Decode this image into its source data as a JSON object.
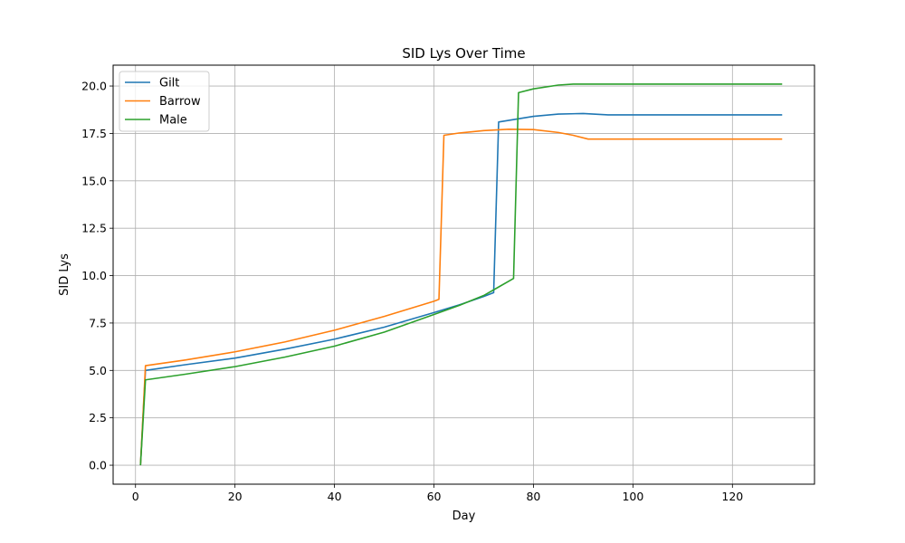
{
  "chart_data": {
    "type": "line",
    "title": "SID Lys Over Time",
    "xlabel": "Day",
    "ylabel": "SID Lys",
    "xlim": [
      -4.5,
      136.5
    ],
    "ylim": [
      -1.0,
      21.1
    ],
    "xticks": [
      0,
      20,
      40,
      60,
      80,
      100,
      120
    ],
    "yticks": [
      0.0,
      2.5,
      5.0,
      7.5,
      10.0,
      12.5,
      15.0,
      17.5,
      20.0
    ],
    "xtick_labels": [
      "0",
      "20",
      "40",
      "60",
      "80",
      "100",
      "120"
    ],
    "ytick_labels": [
      "0.0",
      "2.5",
      "5.0",
      "7.5",
      "10.0",
      "12.5",
      "15.0",
      "17.5",
      "20.0"
    ],
    "grid": true,
    "legend_position": "upper-left",
    "series": [
      {
        "name": "Gilt",
        "color": "#1f77b4",
        "x": [
          1,
          2,
          10,
          20,
          30,
          40,
          50,
          60,
          65,
          70,
          72,
          73,
          80,
          85,
          90,
          95,
          100,
          110,
          120,
          130
        ],
        "y": [
          0.0,
          5.0,
          5.3,
          5.65,
          6.12,
          6.65,
          7.28,
          8.05,
          8.45,
          8.9,
          9.1,
          18.1,
          18.4,
          18.52,
          18.55,
          18.48,
          18.48,
          18.48,
          18.48,
          18.48
        ]
      },
      {
        "name": "Barrow",
        "color": "#ff7f0e",
        "x": [
          1,
          2,
          10,
          20,
          30,
          40,
          50,
          55,
          60,
          61,
          62,
          65,
          70,
          75,
          80,
          85,
          88,
          91,
          100,
          110,
          120,
          130
        ],
        "y": [
          0.0,
          5.25,
          5.55,
          5.98,
          6.5,
          7.12,
          7.85,
          8.25,
          8.65,
          8.75,
          17.4,
          17.52,
          17.65,
          17.72,
          17.7,
          17.55,
          17.4,
          17.2,
          17.2,
          17.2,
          17.2,
          17.2
        ]
      },
      {
        "name": "Male",
        "color": "#2ca02c",
        "x": [
          1,
          2,
          10,
          20,
          30,
          40,
          50,
          60,
          65,
          70,
          73,
          76,
          77,
          80,
          85,
          88,
          90,
          100,
          110,
          120,
          130
        ],
        "y": [
          0.0,
          4.5,
          4.8,
          5.2,
          5.7,
          6.28,
          7.02,
          7.95,
          8.42,
          8.95,
          9.4,
          9.85,
          19.65,
          19.85,
          20.05,
          20.1,
          20.1,
          20.1,
          20.1,
          20.1,
          20.1
        ]
      }
    ]
  }
}
